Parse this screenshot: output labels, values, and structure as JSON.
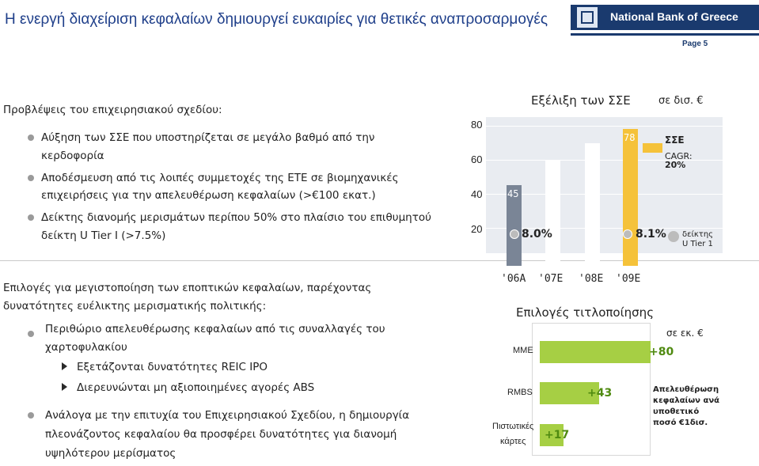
{
  "header": {
    "title": "Η ενεργή διαχείριση κεφαλαίων δημιουργεί ευκαιρίες για θετικές αναπροσαρμογές",
    "brand_name": "National Bank of Greece",
    "page_label": "Page 5",
    "brand_color": "#1a3a6e",
    "title_color": "#1f3f8a"
  },
  "business_plan": {
    "heading": "Προβλέψεις του επιχειρησιακού σχεδίου:",
    "bullets": [
      {
        "line1": "Αύξηση των ΣΣΕ που υποστηρίζεται σε μεγάλο βαθμό από την",
        "line2": "κερδοφορία"
      },
      {
        "line1": "Αποδέσμευση από τις λοιπές συμμετοχές της ΕΤΕ σε βιομηχανικές",
        "line2": "επιχειρήσεις για την απελευθέρωση κεφαλαίων (>€100 εκατ.)"
      },
      {
        "line1": "Δείκτης διανομής μερισμάτων περίπου 50% στο πλαίσιο του επιθυμητού",
        "line2": "δείκτη U Tier I (>7.5%)"
      }
    ]
  },
  "capital_options": {
    "heading_line1": "Επιλογές για μεγιστοποίηση των εποπτικών κεφαλαίων, παρέχοντας",
    "heading_line2": "δυνατότητες ευέλικτης μερισματικής πολιτικής:",
    "bullet1_line1": "Περιθώριο απελευθέρωσης κεφαλαίων από τις συναλλαγές του",
    "bullet1_line2": "χαρτοφυλακίου",
    "sub1": "Εξετάζονται δυνατότητες REIC IPO",
    "sub2": "Διερευνώνται μη αξιοποιημένες αγορές ABS",
    "bullet2_line1": "Ανάλογα με την επιτυχία του Επιχειρησιακού Σχεδίου, η δημιουργία",
    "bullet2_line2": "πλεονάζοντος κεφαλαίου θα προσφέρει δυνατότητες για διανομή",
    "bullet2_line3": "υψηλότερου μερίσματος"
  },
  "chart_data": [
    {
      "type": "bar",
      "title": "Εξέλιξη των ΣΣΕ",
      "unit": "σε δισ. €",
      "categories": [
        "'06A",
        "'07E",
        "'08E",
        "'09E"
      ],
      "values": [
        45,
        60,
        70,
        78
      ],
      "value_labels": [
        "45",
        "",
        "",
        "78"
      ],
      "ylim": [
        20,
        80
      ],
      "yticks": [
        "80",
        "60",
        "40",
        "20"
      ],
      "colors": [
        "#7a8596",
        "#ffffff",
        "#ffffff",
        "#f5c23a"
      ],
      "legend": {
        "label": "ΣΣΕ",
        "cagr_label": "CAGR:",
        "cagr_value": "20%",
        "color": "#f5c23a"
      },
      "tier1_markers": [
        {
          "category": "'06A",
          "value": "8.0%"
        },
        {
          "category": "'09E",
          "value": "8.1%"
        }
      ],
      "tier1_label_line1": "δείκτης",
      "tier1_label_line2": "U Tier 1"
    },
    {
      "type": "bubble",
      "title": "Επιλογές τιτλοποίησης",
      "unit": "σε εκ. €",
      "rows": [
        {
          "label": "ΜΜΕ",
          "value": "+80"
        },
        {
          "label": "RMBS",
          "value": "+43"
        },
        {
          "label_line1": "Πιστωτικές",
          "label_line2": "κάρτες",
          "value": "+17"
        }
      ],
      "colors": {
        "bar": "#a6cf44",
        "value_text": "#4f8a10"
      },
      "note": [
        "Απελευθέρωση",
        "κεφαλαίων ανά",
        "υποθετικό",
        "ποσό €1δισ."
      ]
    }
  ]
}
